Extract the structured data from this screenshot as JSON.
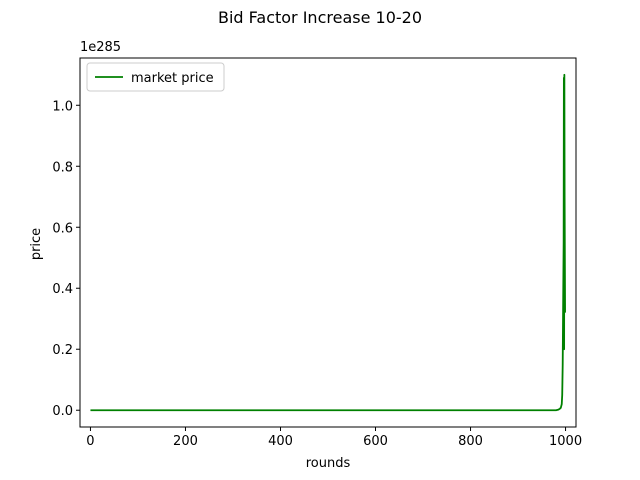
{
  "chart_data": {
    "type": "line",
    "title": "Bid Factor Increase 10-20",
    "xlabel": "rounds",
    "ylabel": "price",
    "y_offset_text": "1e285",
    "xlim": [
      -22,
      1022
    ],
    "ylim": [
      -0.055,
      1.155
    ],
    "xticks": [
      0,
      200,
      400,
      600,
      800,
      1000
    ],
    "xtick_labels": [
      "0",
      "200",
      "400",
      "600",
      "800",
      "1000"
    ],
    "yticks": [
      0.0,
      0.2,
      0.4,
      0.6,
      0.8,
      1.0
    ],
    "ytick_labels": [
      "0.0",
      "0.2",
      "0.4",
      "0.6",
      "0.8",
      "1.0"
    ],
    "grid": false,
    "legend_position": "upper left",
    "series": [
      {
        "name": "market price",
        "color": "#008000",
        "x": [
          0,
          200,
          400,
          600,
          800,
          950,
          980,
          985,
          988,
          990,
          992,
          993,
          994,
          995,
          996,
          996.5,
          997,
          997.5,
          998,
          998.5,
          999
        ],
        "y": [
          0,
          0,
          0,
          0,
          0,
          0,
          0,
          0.002,
          0.005,
          0.008,
          0.02,
          0.05,
          0.15,
          0.35,
          0.55,
          1.09,
          0.2,
          1.1,
          0.7,
          0.5,
          0.32
        ]
      }
    ]
  }
}
